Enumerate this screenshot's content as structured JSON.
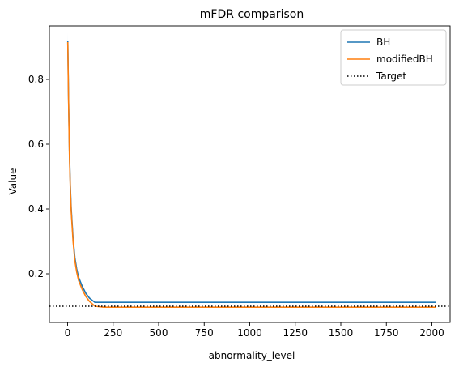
{
  "chart_data": {
    "type": "line",
    "title": "mFDR comparison",
    "xlabel": "abnormality_level",
    "ylabel": "Value",
    "xlim": [
      -100,
      2100
    ],
    "ylim": [
      0.05,
      0.965
    ],
    "xticks": [
      0,
      250,
      500,
      750,
      1000,
      1250,
      1500,
      1750,
      2000
    ],
    "xtick_labels": [
      "0",
      "250",
      "500",
      "750",
      "1000",
      "1250",
      "1500",
      "1750",
      "2000"
    ],
    "yticks": [
      0.2,
      0.4,
      0.6,
      0.8
    ],
    "ytick_labels": [
      "0.2",
      "0.4",
      "0.6",
      "0.8"
    ],
    "grid": false,
    "legend_position": "top-right",
    "series": [
      {
        "name": "BH",
        "color": "#1f77b4",
        "style": "solid",
        "x": [
          1,
          5,
          10,
          15,
          20,
          30,
          40,
          50,
          60,
          80,
          100,
          120,
          150,
          200,
          300,
          500,
          1000,
          1500,
          2020
        ],
        "y": [
          0.92,
          0.75,
          0.58,
          0.47,
          0.4,
          0.31,
          0.25,
          0.215,
          0.19,
          0.162,
          0.14,
          0.125,
          0.112,
          0.112,
          0.112,
          0.112,
          0.112,
          0.112,
          0.112
        ],
        "band_upper": [
          0.945,
          0.77,
          0.6,
          0.485,
          0.41,
          0.32,
          0.258,
          0.222,
          0.196,
          0.167,
          0.144,
          0.128,
          0.114,
          0.114,
          0.114,
          0.114,
          0.114,
          0.114,
          0.114
        ],
        "band_lower": [
          0.895,
          0.73,
          0.56,
          0.455,
          0.39,
          0.3,
          0.242,
          0.208,
          0.184,
          0.157,
          0.136,
          0.122,
          0.11,
          0.11,
          0.11,
          0.11,
          0.11,
          0.11,
          0.11
        ]
      },
      {
        "name": "modifiedBH",
        "color": "#ff7f0e",
        "style": "solid",
        "x": [
          1,
          5,
          10,
          15,
          20,
          30,
          40,
          50,
          60,
          80,
          100,
          120,
          150,
          200,
          300,
          500,
          1000,
          1500,
          2020
        ],
        "y": [
          0.915,
          0.74,
          0.57,
          0.46,
          0.39,
          0.3,
          0.24,
          0.205,
          0.18,
          0.152,
          0.13,
          0.115,
          0.1,
          0.097,
          0.097,
          0.097,
          0.097,
          0.097,
          0.097
        ]
      },
      {
        "name": "Target",
        "color": "#000000",
        "style": "dotted",
        "y_constant": 0.1
      }
    ]
  }
}
